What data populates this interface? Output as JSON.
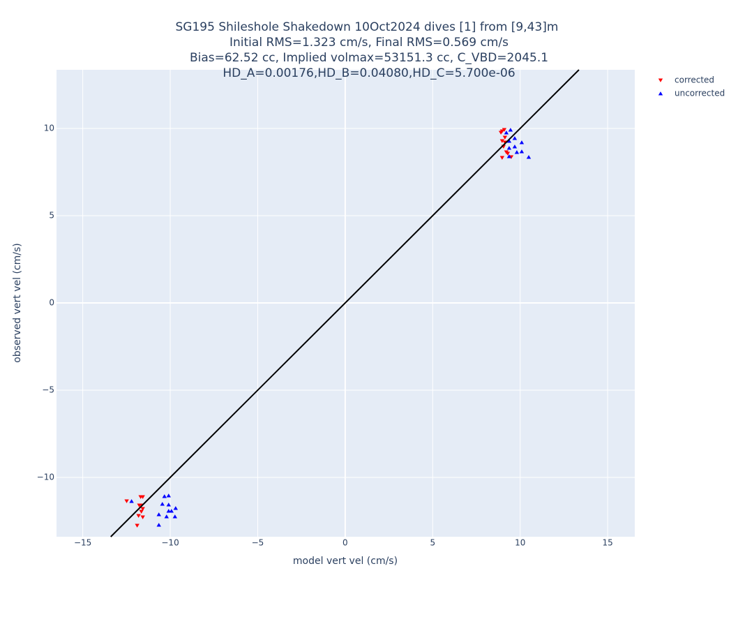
{
  "chart_data": {
    "type": "scatter",
    "title": [
      "SG195 Shileshole Shakedown 10Oct2024 dives [1] from [9,43]m",
      "Initial RMS=1.323 cm/s, Final RMS=0.569 cm/s",
      "Bias=62.52 cc, Implied volmax=53151.3 cc, C_VBD=2045.1",
      "HD_A=0.00176,HD_B=0.04080,HD_C=5.700e-06"
    ],
    "x_label": "model vert vel (cm/s)",
    "y_label": "observed vert vel (cm/s)",
    "xlim": [
      -16.5,
      16.55
    ],
    "ylim": [
      -13.4,
      13.36
    ],
    "xticks": [
      {
        "value": -15,
        "label": "−15"
      },
      {
        "value": -10,
        "label": "−10"
      },
      {
        "value": -5,
        "label": "−5"
      },
      0,
      5,
      10,
      15
    ],
    "yticks": [
      {
        "value": -10,
        "label": "−10"
      },
      {
        "value": -5,
        "label": "−5"
      },
      0,
      5,
      10
    ],
    "grid": true,
    "zeroline": true,
    "legend": "outside-top-right",
    "series": [
      {
        "name": "corrected",
        "color": "#ff0000",
        "symbol": "triangle-down",
        "x": [
          8.97,
          9.09,
          8.9,
          9.13,
          8.97,
          9.13,
          9.05,
          9.21,
          9.29,
          8.97,
          9.49,
          -12.49,
          -11.69,
          -11.57,
          -11.77,
          -11.65,
          -11.57,
          -11.65,
          -11.81,
          -11.57,
          -11.89
        ],
        "y": [
          9.84,
          9.92,
          9.76,
          9.48,
          9.28,
          9.2,
          8.96,
          8.64,
          8.56,
          8.32,
          8.36,
          -11.36,
          -11.12,
          -11.12,
          -11.6,
          -11.6,
          -11.8,
          -11.96,
          -12.2,
          -12.28,
          -12.76
        ]
      },
      {
        "name": "uncorrected",
        "color": "#0000ff",
        "symbol": "triangle-up",
        "x": [
          9.45,
          9.21,
          9.69,
          9.37,
          10.09,
          9.69,
          9.37,
          9.81,
          10.09,
          9.37,
          10.49,
          -12.21,
          -10.33,
          -10.09,
          -10.45,
          -10.09,
          -9.69,
          -10.09,
          -9.93,
          -10.65,
          -10.21,
          -9.73,
          -10.65
        ],
        "y": [
          9.92,
          9.76,
          9.44,
          9.28,
          9.2,
          8.96,
          8.88,
          8.64,
          8.68,
          8.4,
          8.36,
          -11.36,
          -11.08,
          -11.04,
          -11.52,
          -11.56,
          -11.76,
          -11.92,
          -11.92,
          -12.12,
          -12.24,
          -12.24,
          -12.72
        ]
      }
    ],
    "reference_line": {
      "color": "#000000",
      "x": [
        -13.4,
        13.36
      ],
      "y": [
        -13.4,
        13.36
      ]
    }
  }
}
